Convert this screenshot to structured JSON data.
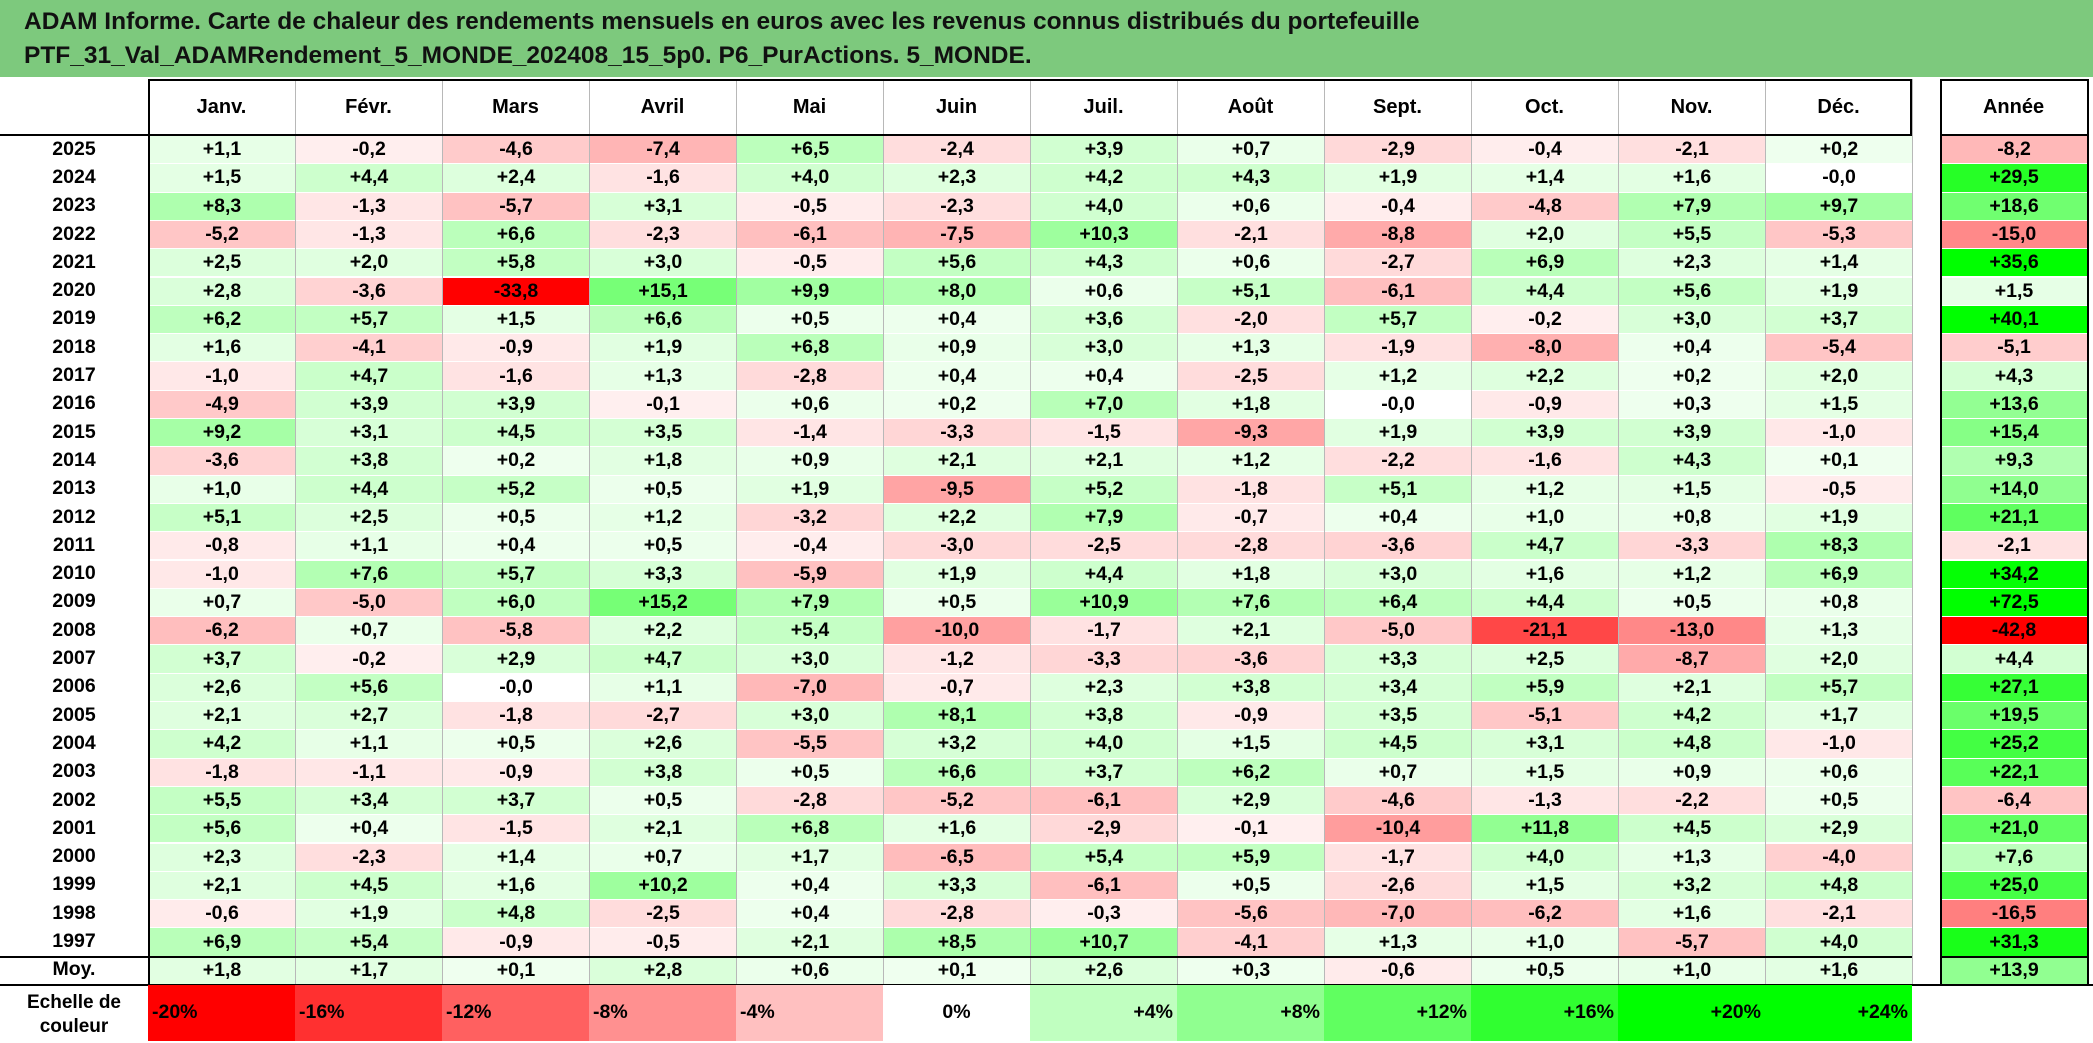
{
  "title": {
    "line1": "ADAM Informe. Carte de chaleur des rendements mensuels en euros avec les revenus connus distribués du portefeuille",
    "line2": "PTF_31_Val_ADAMRendement_5_MONDE_202408_15_5p0. P6_PurActions. 5_MONDE."
  },
  "colors": {
    "title_bg": "#7dc97d",
    "positive": "#00ff00",
    "negative": "#ff0000"
  },
  "chart_data": {
    "type": "heatmap",
    "columns": [
      "Janv.",
      "Févr.",
      "Mars",
      "Avril",
      "Mai",
      "Juin",
      "Juil.",
      "Août",
      "Sept.",
      "Oct.",
      "Nov.",
      "Déc."
    ],
    "annual_header": "Année",
    "rows": [
      {
        "year": "2025",
        "m": [
          "+1,1",
          "-0,2",
          "-4,6",
          "-7,4",
          "+6,5",
          "-2,4",
          "+3,9",
          "+0,7",
          "-2,9",
          "-0,4",
          "-2,1",
          "+0,2"
        ],
        "annual": "-8,2"
      },
      {
        "year": "2024",
        "m": [
          "+1,5",
          "+4,4",
          "+2,4",
          "-1,6",
          "+4,0",
          "+2,3",
          "+4,2",
          "+4,3",
          "+1,9",
          "+1,4",
          "+1,6",
          "-0,0"
        ],
        "annual": "+29,5"
      },
      {
        "year": "2023",
        "m": [
          "+8,3",
          "-1,3",
          "-5,7",
          "+3,1",
          "-0,5",
          "-2,3",
          "+4,0",
          "+0,6",
          "-0,4",
          "-4,8",
          "+7,9",
          "+9,7"
        ],
        "annual": "+18,6"
      },
      {
        "year": "2022",
        "m": [
          "-5,2",
          "-1,3",
          "+6,6",
          "-2,3",
          "-6,1",
          "-7,5",
          "+10,3",
          "-2,1",
          "-8,8",
          "+2,0",
          "+5,5",
          "-5,3"
        ],
        "annual": "-15,0"
      },
      {
        "year": "2021",
        "m": [
          "+2,5",
          "+2,0",
          "+5,8",
          "+3,0",
          "-0,5",
          "+5,6",
          "+4,3",
          "+0,6",
          "-2,7",
          "+6,9",
          "+2,3",
          "+1,4"
        ],
        "annual": "+35,6"
      },
      {
        "year": "2020",
        "m": [
          "+2,8",
          "-3,6",
          "-33,8",
          "+15,1",
          "+9,9",
          "+8,0",
          "+0,6",
          "+5,1",
          "-6,1",
          "+4,4",
          "+5,6",
          "+1,9"
        ],
        "annual": "+1,5"
      },
      {
        "year": "2019",
        "m": [
          "+6,2",
          "+5,7",
          "+1,5",
          "+6,6",
          "+0,5",
          "+0,4",
          "+3,6",
          "-2,0",
          "+5,7",
          "-0,2",
          "+3,0",
          "+3,7"
        ],
        "annual": "+40,1"
      },
      {
        "year": "2018",
        "m": [
          "+1,6",
          "-4,1",
          "-0,9",
          "+1,9",
          "+6,8",
          "+0,9",
          "+3,0",
          "+1,3",
          "-1,9",
          "-8,0",
          "+0,4",
          "-5,4"
        ],
        "annual": "-5,1"
      },
      {
        "year": "2017",
        "m": [
          "-1,0",
          "+4,7",
          "-1,6",
          "+1,3",
          "-2,8",
          "+0,4",
          "+0,4",
          "-2,5",
          "+1,2",
          "+2,2",
          "+0,2",
          "+2,0"
        ],
        "annual": "+4,3"
      },
      {
        "year": "2016",
        "m": [
          "-4,9",
          "+3,9",
          "+3,9",
          "-0,1",
          "+0,6",
          "+0,2",
          "+7,0",
          "+1,8",
          "-0,0",
          "-0,9",
          "+0,3",
          "+1,5"
        ],
        "annual": "+13,6"
      },
      {
        "year": "2015",
        "m": [
          "+9,2",
          "+3,1",
          "+4,5",
          "+3,5",
          "-1,4",
          "-3,3",
          "-1,5",
          "-9,3",
          "+1,9",
          "+3,9",
          "+3,9",
          "-1,0"
        ],
        "annual": "+15,4"
      },
      {
        "year": "2014",
        "m": [
          "-3,6",
          "+3,8",
          "+0,2",
          "+1,8",
          "+0,9",
          "+2,1",
          "+2,1",
          "+1,2",
          "-2,2",
          "-1,6",
          "+4,3",
          "+0,1"
        ],
        "annual": "+9,3"
      },
      {
        "year": "2013",
        "m": [
          "+1,0",
          "+4,4",
          "+5,2",
          "+0,5",
          "+1,9",
          "-9,5",
          "+5,2",
          "-1,8",
          "+5,1",
          "+1,2",
          "+1,5",
          "-0,5"
        ],
        "annual": "+14,0"
      },
      {
        "year": "2012",
        "m": [
          "+5,1",
          "+2,5",
          "+0,5",
          "+1,2",
          "-3,2",
          "+2,2",
          "+7,9",
          "-0,7",
          "+0,4",
          "+1,0",
          "+0,8",
          "+1,9"
        ],
        "annual": "+21,1"
      },
      {
        "year": "2011",
        "m": [
          "-0,8",
          "+1,1",
          "+0,4",
          "+0,5",
          "-0,4",
          "-3,0",
          "-2,5",
          "-2,8",
          "-3,6",
          "+4,7",
          "-3,3",
          "+8,3"
        ],
        "annual": "-2,1"
      },
      {
        "year": "2010",
        "m": [
          "-1,0",
          "+7,6",
          "+5,7",
          "+3,3",
          "-5,9",
          "+1,9",
          "+4,4",
          "+1,8",
          "+3,0",
          "+1,6",
          "+1,2",
          "+6,9"
        ],
        "annual": "+34,2"
      },
      {
        "year": "2009",
        "m": [
          "+0,7",
          "-5,0",
          "+6,0",
          "+15,2",
          "+7,9",
          "+0,5",
          "+10,9",
          "+7,6",
          "+6,4",
          "+4,4",
          "+0,5",
          "+0,8"
        ],
        "annual": "+72,5"
      },
      {
        "year": "2008",
        "m": [
          "-6,2",
          "+0,7",
          "-5,8",
          "+2,2",
          "+5,4",
          "-10,0",
          "-1,7",
          "+2,1",
          "-5,0",
          "-21,1",
          "-13,0",
          "+1,3"
        ],
        "annual": "-42,8"
      },
      {
        "year": "2007",
        "m": [
          "+3,7",
          "-0,2",
          "+2,9",
          "+4,7",
          "+3,0",
          "-1,2",
          "-3,3",
          "-3,6",
          "+3,3",
          "+2,5",
          "-8,7",
          "+2,0"
        ],
        "annual": "+4,4"
      },
      {
        "year": "2006",
        "m": [
          "+2,6",
          "+5,6",
          "-0,0",
          "+1,1",
          "-7,0",
          "-0,7",
          "+2,3",
          "+3,8",
          "+3,4",
          "+5,9",
          "+2,1",
          "+5,7"
        ],
        "annual": "+27,1"
      },
      {
        "year": "2005",
        "m": [
          "+2,1",
          "+2,7",
          "-1,8",
          "-2,7",
          "+3,0",
          "+8,1",
          "+3,8",
          "-0,9",
          "+3,5",
          "-5,1",
          "+4,2",
          "+1,7"
        ],
        "annual": "+19,5"
      },
      {
        "year": "2004",
        "m": [
          "+4,2",
          "+1,1",
          "+0,5",
          "+2,6",
          "-5,5",
          "+3,2",
          "+4,0",
          "+1,5",
          "+4,5",
          "+3,1",
          "+4,8",
          "-1,0"
        ],
        "annual": "+25,2"
      },
      {
        "year": "2003",
        "m": [
          "-1,8",
          "-1,1",
          "-0,9",
          "+3,8",
          "+0,5",
          "+6,6",
          "+3,7",
          "+6,2",
          "+0,7",
          "+1,5",
          "+0,9",
          "+0,6"
        ],
        "annual": "+22,1"
      },
      {
        "year": "2002",
        "m": [
          "+5,5",
          "+3,4",
          "+3,7",
          "+0,5",
          "-2,8",
          "-5,2",
          "-6,1",
          "+2,9",
          "-4,6",
          "-1,3",
          "-2,2",
          "+0,5"
        ],
        "annual": "-6,4"
      },
      {
        "year": "2001",
        "m": [
          "+5,6",
          "+0,4",
          "-1,5",
          "+2,1",
          "+6,8",
          "+1,6",
          "-2,9",
          "-0,1",
          "-10,4",
          "+11,8",
          "+4,5",
          "+2,9"
        ],
        "annual": "+21,0"
      },
      {
        "year": "2000",
        "m": [
          "+2,3",
          "-2,3",
          "+1,4",
          "+0,7",
          "+1,7",
          "-6,5",
          "+5,4",
          "+5,9",
          "-1,7",
          "+4,0",
          "+1,3",
          "-4,0"
        ],
        "annual": "+7,6"
      },
      {
        "year": "1999",
        "m": [
          "+2,1",
          "+4,5",
          "+1,6",
          "+10,2",
          "+0,4",
          "+3,3",
          "-6,1",
          "+0,5",
          "-2,6",
          "+1,5",
          "+3,2",
          "+4,8"
        ],
        "annual": "+25,0"
      },
      {
        "year": "1998",
        "m": [
          "-0,6",
          "+1,9",
          "+4,8",
          "-2,5",
          "+0,4",
          "-2,8",
          "-0,3",
          "-5,6",
          "-7,0",
          "-6,2",
          "+1,6",
          "-2,1"
        ],
        "annual": "-16,5"
      },
      {
        "year": "1997",
        "m": [
          "+6,9",
          "+5,4",
          "-0,9",
          "-0,5",
          "+2,1",
          "+8,5",
          "+10,7",
          "-4,1",
          "+1,3",
          "+1,0",
          "-5,7",
          "+4,0"
        ],
        "annual": "+31,3"
      }
    ],
    "average_row": {
      "label": "Moy.",
      "m": [
        "+1,8",
        "+1,7",
        "+0,1",
        "+2,8",
        "+0,6",
        "+0,1",
        "+2,6",
        "+0,3",
        "-0,6",
        "+0,5",
        "+1,0",
        "+1,6"
      ],
      "annual": "+13,9"
    },
    "scale": {
      "label_line1": "Echelle de",
      "label_line2": "couleur",
      "steps": [
        {
          "label": "-20%",
          "value": -20
        },
        {
          "label": "-16%",
          "value": -16
        },
        {
          "label": "-12%",
          "value": -12
        },
        {
          "label": "-8%",
          "value": -8
        },
        {
          "label": "-4%",
          "value": -4
        },
        {
          "label": "0%",
          "value": 0
        },
        {
          "label": "+4%",
          "value": 4
        },
        {
          "label": "+8%",
          "value": 8
        },
        {
          "label": "+12%",
          "value": 12
        },
        {
          "label": "+16%",
          "value": 16
        },
        {
          "label": "+20%",
          "value": 20
        },
        {
          "label": "+24%",
          "value": 24
        }
      ]
    }
  }
}
